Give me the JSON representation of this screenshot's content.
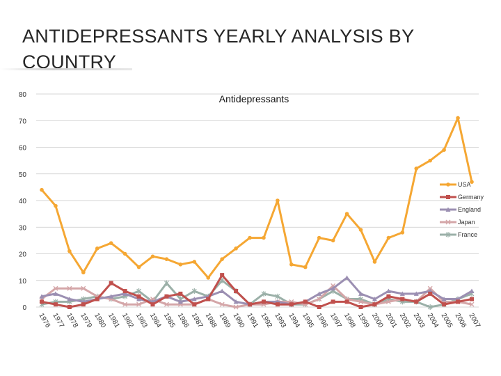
{
  "slide": {
    "title": "ANTIDEPRESSANTS YEARLY ANALYSIS BY COUNTRY"
  },
  "chart_data": {
    "type": "line",
    "title": "Antidepressants",
    "xlabel": "",
    "ylabel": "",
    "ylim": [
      0,
      80
    ],
    "yticks": [
      0,
      10,
      20,
      30,
      40,
      50,
      60,
      70,
      80
    ],
    "grid": true,
    "legend_position": "right",
    "categories": [
      "1976",
      "1977",
      "1978",
      "1979",
      "1980",
      "1981",
      "1982",
      "1983",
      "1984",
      "1985",
      "1986",
      "1987",
      "1988",
      "1989",
      "1990",
      "1991",
      "1992",
      "1993",
      "1994",
      "1995",
      "1996",
      "1997",
      "1998",
      "1999",
      "2000",
      "2001",
      "2002",
      "2003",
      "2004",
      "2005",
      "2006",
      "2007"
    ],
    "series": [
      {
        "name": "USA",
        "color": "#f5a733",
        "marker": "circle",
        "values": [
          44,
          38,
          21,
          13,
          22,
          24,
          20,
          15,
          19,
          18,
          16,
          17,
          11,
          18,
          22,
          26,
          26,
          40,
          16,
          15,
          26,
          25,
          35,
          29,
          17,
          26,
          28,
          52,
          55,
          59,
          71,
          47
        ]
      },
      {
        "name": "Germany",
        "color": "#c0504d",
        "marker": "square",
        "values": [
          2,
          1,
          0,
          1,
          3,
          9,
          6,
          4,
          1,
          4,
          5,
          1,
          3,
          12,
          6,
          1,
          2,
          1,
          1,
          2,
          0,
          2,
          2,
          0,
          1,
          4,
          3,
          2,
          5,
          1,
          2,
          3
        ]
      },
      {
        "name": "England",
        "color": "#9b8fb2",
        "marker": "triangle",
        "values": [
          4,
          5,
          3,
          2,
          3,
          4,
          5,
          3,
          2,
          4,
          2,
          3,
          4,
          6,
          2,
          1,
          2,
          2,
          1,
          2,
          5,
          7,
          11,
          5,
          3,
          6,
          5,
          5,
          6,
          3,
          3,
          6
        ]
      },
      {
        "name": "Japan",
        "color": "#d4a6a8",
        "marker": "x",
        "values": [
          3,
          7,
          7,
          7,
          4,
          3,
          1,
          1,
          3,
          1,
          1,
          1,
          3,
          1,
          0,
          1,
          1,
          2,
          2,
          1,
          3,
          8,
          3,
          2,
          1,
          2,
          3,
          2,
          7,
          2,
          2,
          1
        ]
      },
      {
        "name": "France",
        "color": "#9bb0a8",
        "marker": "star",
        "values": [
          1,
          2,
          2,
          3,
          4,
          3,
          4,
          6,
          2,
          9,
          3,
          6,
          4,
          10,
          6,
          1,
          5,
          4,
          1,
          1,
          3,
          6,
          3,
          3,
          1,
          3,
          2,
          2,
          0,
          1,
          3,
          5
        ]
      }
    ]
  }
}
